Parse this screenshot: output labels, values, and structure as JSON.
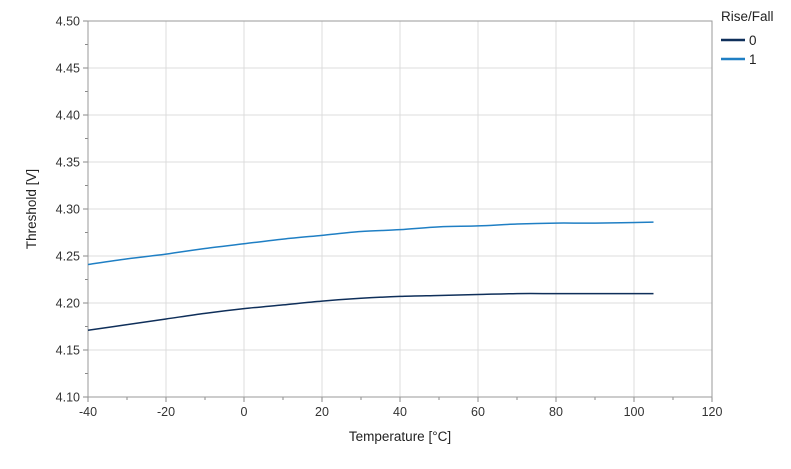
{
  "chart_data": {
    "type": "line",
    "xlabel": "Temperature [°C]",
    "ylabel": "Threshold [V]",
    "xlim": [
      -40,
      120
    ],
    "ylim": [
      4.1,
      4.5
    ],
    "x_ticks": [
      -40,
      -20,
      0,
      20,
      40,
      60,
      80,
      100,
      120
    ],
    "x_tick_labels": [
      "-40",
      "-20",
      "0",
      "20",
      "40",
      "60",
      "80",
      "100",
      "120"
    ],
    "y_ticks": [
      4.1,
      4.15,
      4.2,
      4.25,
      4.3,
      4.35,
      4.4,
      4.45,
      4.5
    ],
    "y_tick_labels": [
      "4.10",
      "4.15",
      "4.20",
      "4.25",
      "4.30",
      "4.35",
      "4.40",
      "4.45",
      "4.50"
    ],
    "grid": true,
    "legend": {
      "title": "Rise/Fall",
      "position": "top-right"
    },
    "series": [
      {
        "name": "0",
        "color": "#0f2f5a",
        "x": [
          -40,
          -30,
          -20,
          -10,
          0,
          10,
          20,
          30,
          40,
          50,
          60,
          70,
          80,
          90,
          105
        ],
        "y": [
          4.171,
          4.177,
          4.183,
          4.189,
          4.194,
          4.198,
          4.202,
          4.205,
          4.207,
          4.208,
          4.209,
          4.21,
          4.21,
          4.21,
          4.21
        ]
      },
      {
        "name": "1",
        "color": "#1f7fc4",
        "x": [
          -40,
          -30,
          -20,
          -10,
          0,
          10,
          20,
          30,
          40,
          50,
          60,
          70,
          80,
          90,
          105
        ],
        "y": [
          4.241,
          4.247,
          4.252,
          4.258,
          4.263,
          4.268,
          4.272,
          4.276,
          4.278,
          4.281,
          4.282,
          4.284,
          4.285,
          4.285,
          4.286
        ]
      }
    ]
  }
}
